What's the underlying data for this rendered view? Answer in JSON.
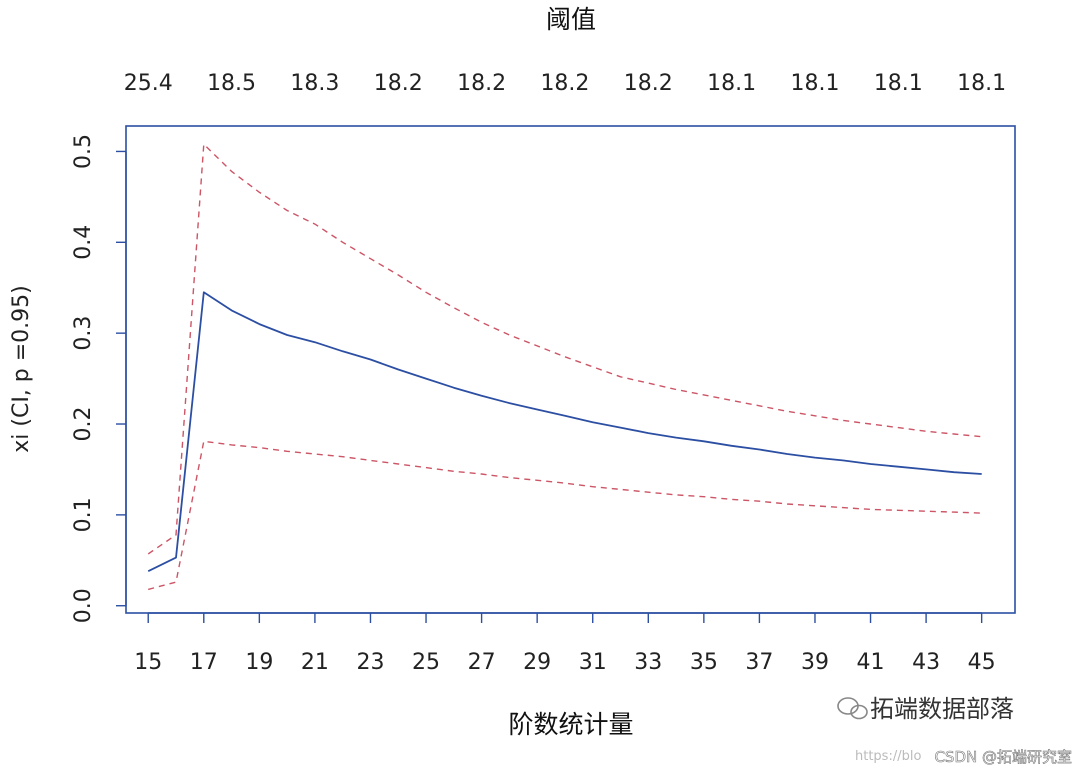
{
  "chart_data": {
    "type": "line",
    "xlabel": "阶数统计量",
    "ylabel": "xi (CI, p =0.95)",
    "top_axis_title": "阈值",
    "x_ticks": [
      15,
      17,
      19,
      21,
      23,
      25,
      27,
      29,
      31,
      33,
      35,
      37,
      39,
      41,
      43,
      45
    ],
    "x_tick_labels": [
      "15",
      "17",
      "19",
      "21",
      "23",
      "25",
      "27",
      "29",
      "31",
      "33",
      "35",
      "37",
      "39",
      "41",
      "43",
      "45"
    ],
    "y_ticks": [
      0.0,
      0.1,
      0.2,
      0.3,
      0.4,
      0.5
    ],
    "y_tick_labels": [
      "0.0",
      "0.1",
      "0.2",
      "0.3",
      "0.4",
      "0.5"
    ],
    "top_ticks": [
      15,
      18,
      21,
      24,
      27,
      30,
      33,
      36,
      39,
      42,
      45
    ],
    "top_tick_labels": [
      "25.4",
      "18.5",
      "18.3",
      "18.2",
      "18.2",
      "18.2",
      "18.2",
      "18.1",
      "18.1",
      "18.1",
      "18.1"
    ],
    "xlim": [
      14.2,
      46.2
    ],
    "ylim": [
      -0.008,
      0.528
    ],
    "grid": false,
    "x": [
      15,
      16,
      17,
      18,
      19,
      20,
      21,
      22,
      23,
      24,
      25,
      26,
      27,
      28,
      29,
      30,
      31,
      32,
      33,
      34,
      35,
      36,
      37,
      38,
      39,
      40,
      41,
      42,
      43,
      44,
      45
    ],
    "series": [
      {
        "role": "estimate",
        "color": "#2c4fa3",
        "dashed": false,
        "values": [
          0.038,
          0.053,
          0.345,
          0.325,
          0.31,
          0.298,
          0.29,
          0.28,
          0.271,
          0.26,
          0.25,
          0.24,
          0.231,
          0.223,
          0.216,
          0.209,
          0.202,
          0.196,
          0.19,
          0.185,
          0.181,
          0.176,
          0.172,
          0.167,
          0.163,
          0.16,
          0.156,
          0.153,
          0.15,
          0.147,
          0.145
        ]
      },
      {
        "role": "upper",
        "color": "#cc5566",
        "dashed": true,
        "values": [
          0.057,
          0.078,
          0.508,
          0.478,
          0.455,
          0.435,
          0.42,
          0.4,
          0.382,
          0.364,
          0.345,
          0.328,
          0.312,
          0.298,
          0.286,
          0.274,
          0.263,
          0.252,
          0.245,
          0.238,
          0.232,
          0.226,
          0.22,
          0.214,
          0.209,
          0.204,
          0.2,
          0.196,
          0.192,
          0.189,
          0.186
        ]
      },
      {
        "role": "lower",
        "color": "#cc5566",
        "dashed": true,
        "values": [
          0.018,
          0.026,
          0.181,
          0.177,
          0.174,
          0.17,
          0.167,
          0.164,
          0.16,
          0.156,
          0.152,
          0.148,
          0.145,
          0.141,
          0.138,
          0.135,
          0.131,
          0.128,
          0.125,
          0.122,
          0.12,
          0.117,
          0.115,
          0.112,
          0.11,
          0.108,
          0.106,
          0.105,
          0.104,
          0.103,
          0.102
        ]
      }
    ]
  },
  "watermark": {
    "brand": "拓端数据部落",
    "source": "CSDN @拓端研究室",
    "url_fragment": "https://blo"
  }
}
